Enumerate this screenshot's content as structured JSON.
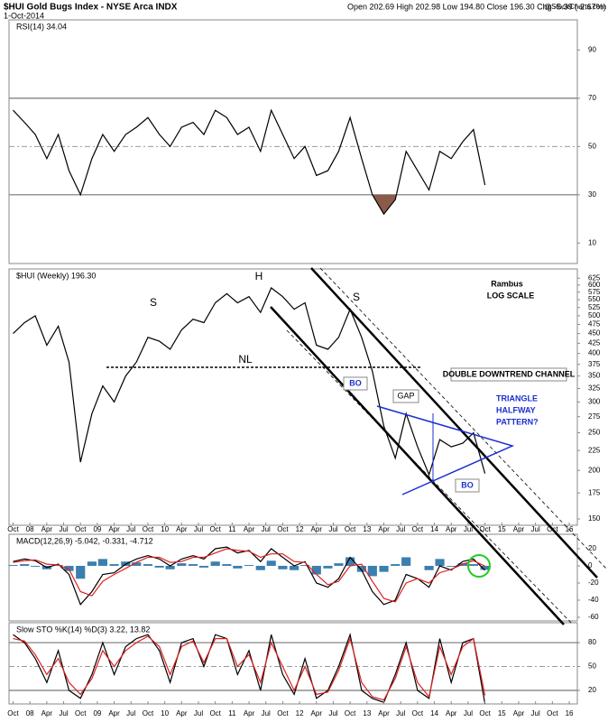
{
  "header": {
    "title": "$HUI Gold Bugs Index - NYSE Arca INDX",
    "date": "1-Oct-2014",
    "quote": "Open 202.69   High 202.98   Low 194.80   Close 196.30   Chg -5.39 (-2.67%)",
    "source": "@StockCharts.com"
  },
  "chart_data": [
    {
      "type": "line",
      "title": "RSI(14) 34.04",
      "x": [
        2007.75,
        2007.92,
        2008.08,
        2008.25,
        2008.42,
        2008.58,
        2008.75,
        2008.92,
        2009.08,
        2009.25,
        2009.42,
        2009.58,
        2009.75,
        2009.92,
        2010.08,
        2010.25,
        2010.42,
        2010.58,
        2010.75,
        2010.92,
        2011.08,
        2011.25,
        2011.42,
        2011.58,
        2011.75,
        2011.92,
        2012.08,
        2012.25,
        2012.42,
        2012.58,
        2012.75,
        2012.92,
        2013.08,
        2013.25,
        2013.42,
        2013.58,
        2013.75,
        2013.92,
        2014.08,
        2014.25,
        2014.42,
        2014.58,
        2014.75
      ],
      "series": [
        {
          "color": "#000000",
          "values": [
            65,
            60,
            55,
            45,
            55,
            40,
            30,
            45,
            55,
            48,
            55,
            58,
            62,
            55,
            50,
            58,
            60,
            55,
            65,
            62,
            55,
            58,
            48,
            65,
            55,
            45,
            50,
            38,
            40,
            48,
            62,
            45,
            30,
            22,
            28,
            48,
            40,
            32,
            48,
            45,
            52,
            57,
            34.04
          ]
        }
      ],
      "xlim": [
        2007.69,
        2016.12
      ],
      "ylim": [
        1.5,
        102.5
      ],
      "yticks": [
        10,
        30,
        50,
        70,
        90
      ],
      "ref_lines": [
        30,
        70
      ],
      "dashed_lines": [
        50
      ],
      "fill_below": 30,
      "fill_color": "#8b5a4a"
    },
    {
      "type": "line",
      "title": "$HUI (Weekly) 196.30",
      "log_scale": true,
      "x": [
        2007.75,
        2007.92,
        2008.08,
        2008.25,
        2008.42,
        2008.58,
        2008.75,
        2008.92,
        2009.08,
        2009.25,
        2009.42,
        2009.58,
        2009.75,
        2009.92,
        2010.08,
        2010.25,
        2010.42,
        2010.58,
        2010.75,
        2010.92,
        2011.08,
        2011.25,
        2011.42,
        2011.58,
        2011.75,
        2011.92,
        2012.08,
        2012.25,
        2012.42,
        2012.58,
        2012.75,
        2012.92,
        2013.08,
        2013.25,
        2013.42,
        2013.58,
        2013.75,
        2013.92,
        2014.08,
        2014.25,
        2014.42,
        2014.58,
        2014.75
      ],
      "series": [
        {
          "color": "#000000",
          "values": [
            450,
            480,
            500,
            420,
            470,
            380,
            210,
            280,
            330,
            300,
            350,
            380,
            440,
            430,
            410,
            460,
            490,
            480,
            540,
            570,
            540,
            560,
            510,
            590,
            560,
            520,
            540,
            420,
            410,
            440,
            520,
            440,
            360,
            260,
            215,
            280,
            230,
            195,
            240,
            230,
            235,
            250,
            196.3
          ]
        }
      ],
      "xlim": [
        2007.69,
        2016.12
      ],
      "ylim": [
        144.5,
        660
      ],
      "yticks": [
        150,
        175,
        200,
        225,
        250,
        275,
        300,
        325,
        350,
        375,
        400,
        425,
        450,
        475,
        500,
        525,
        550,
        575,
        600,
        625
      ],
      "xticks": [
        {
          "value": 2007.75,
          "label": "Oct"
        },
        {
          "value": 2008,
          "label": "08"
        },
        {
          "value": 2008.25,
          "label": "Apr"
        },
        {
          "value": 2008.5,
          "label": "Jul"
        },
        {
          "value": 2008.75,
          "label": "Oct"
        },
        {
          "value": 2009,
          "label": "09"
        },
        {
          "value": 2009.25,
          "label": "Apr"
        },
        {
          "value": 2009.5,
          "label": "Jul"
        },
        {
          "value": 2009.75,
          "label": "Oct"
        },
        {
          "value": 2010,
          "label": "10"
        },
        {
          "value": 2010.25,
          "label": "Apr"
        },
        {
          "value": 2010.5,
          "label": "Jul"
        },
        {
          "value": 2010.75,
          "label": "Oct"
        },
        {
          "value": 2011,
          "label": "11"
        },
        {
          "value": 2011.25,
          "label": "Apr"
        },
        {
          "value": 2011.5,
          "label": "Jul"
        },
        {
          "value": 2011.75,
          "label": "Oct"
        },
        {
          "value": 2012,
          "label": "12"
        },
        {
          "value": 2012.25,
          "label": "Apr"
        },
        {
          "value": 2012.5,
          "label": "Jul"
        },
        {
          "value": 2012.75,
          "label": "Oct"
        },
        {
          "value": 2013,
          "label": "13"
        },
        {
          "value": 2013.25,
          "label": "Apr"
        },
        {
          "value": 2013.5,
          "label": "Jul"
        },
        {
          "value": 2013.75,
          "label": "Oct"
        },
        {
          "value": 2014,
          "label": "14"
        },
        {
          "value": 2014.25,
          "label": "Apr"
        },
        {
          "value": 2014.5,
          "label": "Jul"
        },
        {
          "value": 2014.75,
          "label": "Oct"
        },
        {
          "value": 2015,
          "label": "15"
        },
        {
          "value": 2015.25,
          "label": "Apr"
        },
        {
          "value": 2015.5,
          "label": "Jul"
        },
        {
          "value": 2015.75,
          "label": "Oct"
        },
        {
          "value": 2016,
          "label": "16"
        }
      ],
      "annotations": [
        "S",
        "H",
        "S",
        "NL",
        "Rambus",
        "LOG SCALE",
        "BO",
        "GAP",
        "DOUBLE DOWNTREND CHANNEL",
        "TRIANGLE",
        "HALFWAY",
        "PATTERN?",
        "BO"
      ]
    },
    {
      "type": "line",
      "title": "MACD(12,26,9) -5.042, -0.331, -4.712",
      "x": [
        2007.75,
        2007.92,
        2008.08,
        2008.25,
        2008.42,
        2008.58,
        2008.75,
        2008.92,
        2009.08,
        2009.25,
        2009.42,
        2009.58,
        2009.75,
        2009.92,
        2010.08,
        2010.25,
        2010.42,
        2010.58,
        2010.75,
        2010.92,
        2011.08,
        2011.25,
        2011.42,
        2011.58,
        2011.75,
        2011.92,
        2012.08,
        2012.25,
        2012.42,
        2012.58,
        2012.75,
        2012.92,
        2013.08,
        2013.25,
        2013.42,
        2013.58,
        2013.75,
        2013.92,
        2014.08,
        2014.25,
        2014.42,
        2014.58,
        2014.75
      ],
      "series": [
        {
          "color": "#3b7fae",
          "style": "bar",
          "values": [
            1,
            2,
            -1,
            -4,
            1,
            -6,
            -15,
            5,
            8,
            2,
            5,
            4,
            2,
            -2,
            -4,
            3,
            2,
            -2,
            5,
            2,
            -3,
            1,
            -5,
            6,
            -4,
            -5,
            1,
            -10,
            -3,
            3,
            10,
            -7,
            -12,
            -7,
            2,
            10,
            0,
            -5,
            8,
            -1,
            3,
            2,
            -4.712
          ]
        },
        {
          "color": "#000000",
          "values": [
            5,
            8,
            6,
            -2,
            2,
            -10,
            -45,
            -30,
            -10,
            -8,
            2,
            8,
            12,
            8,
            0,
            8,
            12,
            8,
            20,
            22,
            15,
            18,
            5,
            20,
            10,
            0,
            5,
            -20,
            -25,
            -15,
            10,
            -5,
            -30,
            -45,
            -40,
            -10,
            -15,
            -25,
            0,
            -5,
            5,
            8,
            -5.042
          ]
        },
        {
          "color": "#e02020",
          "values": [
            4,
            6,
            7,
            2,
            1,
            -4,
            -30,
            -35,
            -18,
            -10,
            -3,
            4,
            10,
            10,
            4,
            5,
            10,
            10,
            15,
            20,
            18,
            17,
            10,
            14,
            14,
            5,
            4,
            -10,
            -22,
            -18,
            0,
            2,
            -18,
            -38,
            -42,
            -20,
            -15,
            -20,
            -8,
            -4,
            2,
            6,
            -0.331
          ]
        }
      ],
      "xlim": [
        2007.69,
        2016.12
      ],
      "ylim": [
        -64.2,
        36.8
      ],
      "yticks": [
        -60,
        -40,
        -20,
        0,
        20
      ]
    },
    {
      "type": "line",
      "title": "Slow STO %K(14) %D(3) 3.22, 13.82",
      "x": [
        2007.75,
        2007.92,
        2008.08,
        2008.25,
        2008.42,
        2008.58,
        2008.75,
        2008.92,
        2009.08,
        2009.25,
        2009.42,
        2009.58,
        2009.75,
        2009.92,
        2010.08,
        2010.25,
        2010.42,
        2010.58,
        2010.75,
        2010.92,
        2011.08,
        2011.25,
        2011.42,
        2011.58,
        2011.75,
        2011.92,
        2012.08,
        2012.25,
        2012.42,
        2012.58,
        2012.75,
        2012.92,
        2013.08,
        2013.25,
        2013.42,
        2013.58,
        2013.75,
        2013.92,
        2014.08,
        2014.25,
        2014.42,
        2014.58,
        2014.75
      ],
      "series": [
        {
          "color": "#000000",
          "values": [
            90,
            80,
            60,
            30,
            70,
            20,
            10,
            40,
            80,
            40,
            75,
            85,
            90,
            70,
            30,
            80,
            85,
            50,
            90,
            85,
            40,
            70,
            20,
            90,
            40,
            15,
            60,
            10,
            20,
            50,
            90,
            20,
            10,
            5,
            40,
            80,
            20,
            10,
            85,
            30,
            80,
            85,
            3.22
          ]
        },
        {
          "color": "#e02020",
          "values": [
            85,
            82,
            65,
            40,
            60,
            30,
            15,
            35,
            70,
            50,
            70,
            80,
            88,
            75,
            40,
            75,
            82,
            55,
            85,
            85,
            50,
            65,
            30,
            80,
            50,
            20,
            50,
            15,
            18,
            45,
            85,
            30,
            12,
            8,
            35,
            75,
            30,
            12,
            75,
            40,
            75,
            85,
            13.82
          ]
        }
      ],
      "xlim": [
        2007.69,
        2016.12
      ],
      "ylim": [
        3,
        105
      ],
      "yticks": [
        20,
        50,
        80
      ],
      "ref_lines": [
        20,
        80
      ],
      "dashed_lines": [
        50
      ]
    }
  ]
}
